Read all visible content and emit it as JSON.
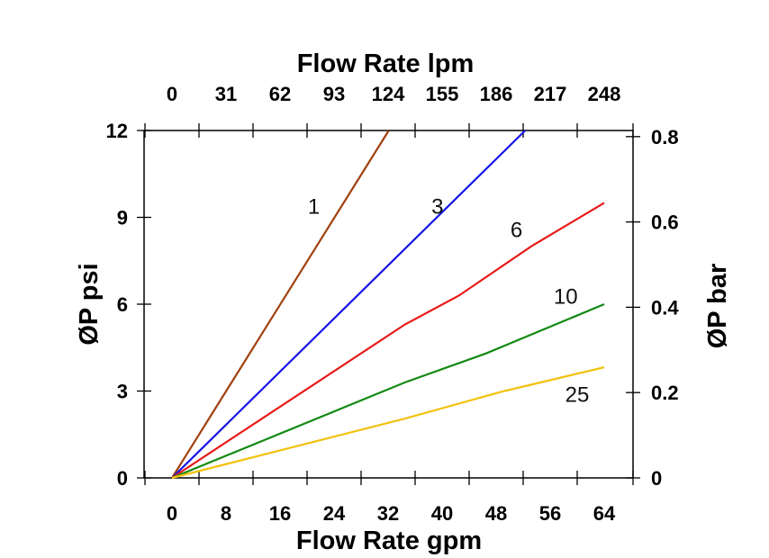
{
  "chart_data": {
    "type": "line",
    "xlabel": "Flow Rate gpm",
    "x2label": "Flow Rate lpm",
    "ylabel": "ØP psi",
    "y2label": "ØP bar",
    "xticks": [
      0,
      8,
      16,
      24,
      32,
      40,
      48,
      56,
      64
    ],
    "x2ticks": [
      0,
      31,
      62,
      93,
      124,
      155,
      186,
      217,
      248
    ],
    "yticks": [
      0,
      3,
      6,
      9,
      12
    ],
    "y2ticks": [
      0,
      0.2,
      0.4,
      0.6,
      0.8
    ],
    "xlim": [
      -4,
      68
    ],
    "ylim": [
      0,
      12
    ],
    "grid": false,
    "series": [
      {
        "name": "1",
        "color": "#a0420f",
        "points": [
          [
            0,
            0
          ],
          [
            32.1,
            12
          ]
        ],
        "label_at": [
          21,
          9.4
        ]
      },
      {
        "name": "3",
        "color": "#1515e6",
        "points": [
          [
            0,
            0
          ],
          [
            52.3,
            12
          ]
        ],
        "label_at": [
          39.3,
          9.4
        ]
      },
      {
        "name": "6",
        "color": "#e81a1a",
        "points": [
          [
            0,
            0
          ],
          [
            34.5,
            5.3
          ],
          [
            42.5,
            6.3
          ],
          [
            53.2,
            8.0
          ],
          [
            64,
            9.5
          ]
        ],
        "label_at": [
          51,
          8.6
        ]
      },
      {
        "name": "10",
        "color": "#138a13",
        "points": [
          [
            0,
            0
          ],
          [
            34.5,
            3.3
          ],
          [
            46.5,
            4.3
          ],
          [
            64,
            6.0
          ]
        ],
        "label_at": [
          58.3,
          6.3
        ]
      },
      {
        "name": "25",
        "color": "#f2c20f",
        "points": [
          [
            0,
            0
          ],
          [
            34.5,
            2.05
          ],
          [
            49.2,
            3.0
          ],
          [
            64,
            3.82
          ]
        ],
        "label_at": [
          60,
          2.9
        ]
      }
    ]
  }
}
